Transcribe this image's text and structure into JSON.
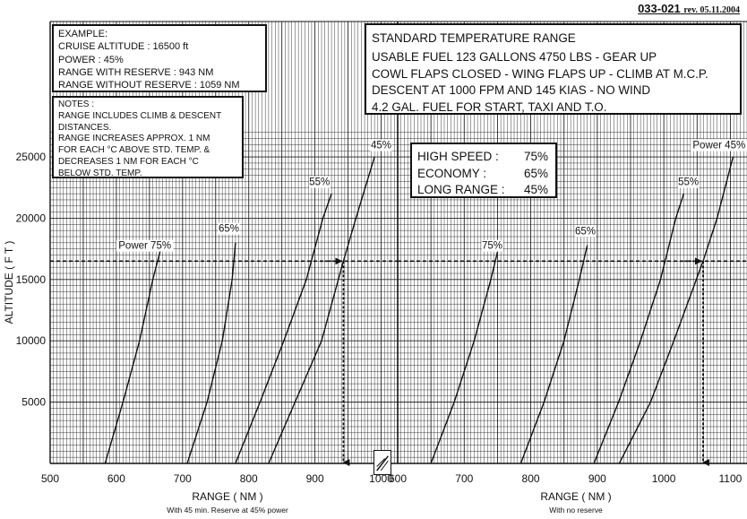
{
  "reference": {
    "code": "033-021",
    "revision": "rev. 05.11.2004"
  },
  "example": {
    "lines": [
      "EXAMPLE:",
      "CRUISE ALTITUDE : 16500 ft",
      "POWER : 45%",
      "RANGE WITH RESERVE : 943 NM",
      "RANGE WITHOUT RESERVE : 1059 NM"
    ]
  },
  "notes": {
    "lines": [
      "NOTES :",
      "RANGE INCLUDES CLIMB & DESCENT",
      "DISTANCES.",
      "RANGE INCREASES APPROX. 1 NM",
      "FOR EACH °C ABOVE STD. TEMP. &",
      "DECREASES 1 NM FOR EACH °C",
      "BELOW STD. TEMP."
    ]
  },
  "title_box": {
    "title": "STANDARD TEMPERATURE RANGE",
    "lines": [
      "USABLE FUEL 123 GALLONS 4750 LBS - GEAR UP",
      "COWL FLAPS CLOSED - WING FLAPS UP - CLIMB AT M.C.P.",
      "DESCENT AT 1000 FPM AND 145 KIAS - NO WIND",
      "4.2 GAL. FUEL FOR START, TAXI AND T.O."
    ]
  },
  "power_settings": [
    {
      "label": "HIGH SPEED :",
      "value": "75%"
    },
    {
      "label": "ECONOMY :",
      "value": "65%"
    },
    {
      "label": "LONG RANGE :",
      "value": "45%"
    }
  ],
  "style": {
    "ink": "#111111",
    "grid": "#222222",
    "background": "#ffffff"
  },
  "chart_data": [
    {
      "type": "line",
      "panel": "left",
      "xlabel": "RANGE  ( NM )",
      "xsublabel": "With 45 min. Reserve at 45% power",
      "ylabel": "ALTITUDE  ( F T )",
      "xlim": [
        500,
        1025
      ],
      "ylim": [
        0,
        27200
      ],
      "x_ticks": [
        500,
        600,
        700,
        800,
        900,
        1000
      ],
      "y_ticks": [
        5000,
        10000,
        15000,
        20000,
        25000
      ],
      "grid": true,
      "series": [
        {
          "name": "Power 75%",
          "label_at": [
            643,
            17500
          ],
          "points": [
            [
              583,
              0
            ],
            [
              610,
              5000
            ],
            [
              635,
              10000
            ],
            [
              655,
              15000
            ],
            [
              668,
              17700
            ]
          ]
        },
        {
          "name": "65%",
          "label_at": [
            770,
            18900
          ],
          "points": [
            [
              707,
              0
            ],
            [
              737,
              5000
            ],
            [
              760,
              10000
            ],
            [
              775,
              15000
            ],
            [
              780,
              18000
            ]
          ]
        },
        {
          "name": "55%",
          "points": [
            [
              780,
              0
            ],
            [
              817,
              5000
            ],
            [
              853,
              10000
            ],
            [
              887,
              15000
            ],
            [
              912,
              20000
            ],
            [
              925,
              22000
            ]
          ],
          "label_at": [
            907,
            22700
          ]
        },
        {
          "name": "45%",
          "points": [
            [
              830,
              0
            ],
            [
              870,
              5000
            ],
            [
              910,
              10000
            ],
            [
              943,
              16500
            ],
            [
              962,
              20000
            ],
            [
              990,
              25000
            ]
          ],
          "label_at": [
            1000,
            25700
          ]
        }
      ],
      "annotations": [
        {
          "type": "altitude_line",
          "y": 16500
        },
        {
          "type": "range_readout",
          "x": 943,
          "y": 16500
        }
      ]
    },
    {
      "type": "line",
      "panel": "right",
      "xlabel": "RANGE  ( NM )",
      "xsublabel": "With no reserve",
      "xlim": [
        600,
        1125
      ],
      "ylim": [
        0,
        27200
      ],
      "x_ticks": [
        600,
        700,
        800,
        900,
        1000,
        1100
      ],
      "grid": true,
      "series": [
        {
          "name": "75%",
          "label_at": [
            742,
            17500
          ],
          "points": [
            [
              650,
              0
            ],
            [
              685,
              5000
            ],
            [
              715,
              10000
            ],
            [
              740,
              15000
            ],
            [
              752,
              17700
            ]
          ]
        },
        {
          "name": "65%",
          "label_at": [
            882,
            18700
          ],
          "points": [
            [
              785,
              0
            ],
            [
              820,
              5000
            ],
            [
              850,
              10000
            ],
            [
              873,
              15000
            ],
            [
              885,
              17800
            ]
          ]
        },
        {
          "name": "55%",
          "label_at": [
            1037,
            22700
          ],
          "points": [
            [
              895,
              0
            ],
            [
              932,
              5000
            ],
            [
              965,
              10000
            ],
            [
              995,
              15000
            ],
            [
              1018,
              20000
            ],
            [
              1030,
              22000
            ]
          ]
        },
        {
          "name": "Power 45%",
          "label_at": [
            1083,
            25700
          ],
          "points": [
            [
              933,
              0
            ],
            [
              980,
              5000
            ],
            [
              1015,
              10000
            ],
            [
              1059,
              16500
            ],
            [
              1080,
              20000
            ],
            [
              1104,
              25000
            ]
          ]
        }
      ],
      "annotations": [
        {
          "type": "altitude_line",
          "y": 16500
        },
        {
          "type": "range_readout",
          "x": 1059,
          "y": 16500
        }
      ]
    }
  ]
}
